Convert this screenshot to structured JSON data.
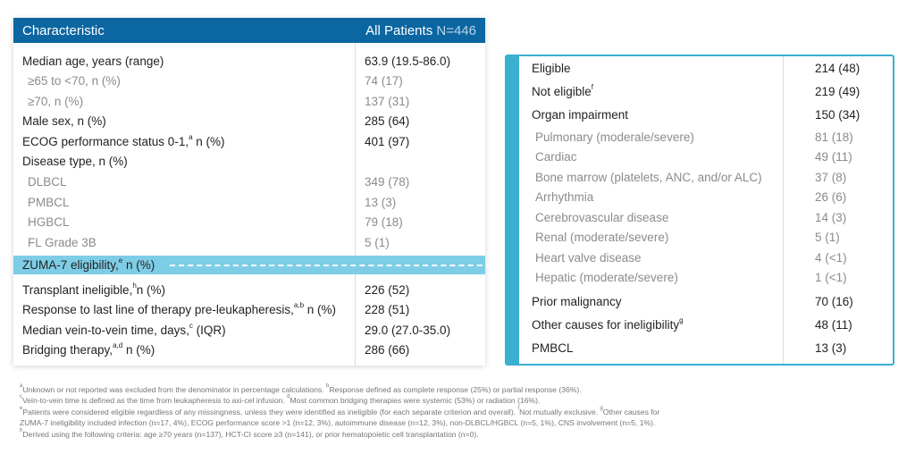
{
  "left_table": {
    "header": {
      "characteristic": "Characteristic",
      "all_patients": "All Patients",
      "n": "N=446"
    },
    "rows": [
      {
        "label": "Median age, years (range)",
        "sup": "",
        "after": "",
        "value": "63.9 (19.5-86.0)",
        "sub": false
      },
      {
        "label": "≥65 to <70, n (%)",
        "sup": "",
        "after": "",
        "value": "74 (17)",
        "sub": true
      },
      {
        "label": "≥70, n (%)",
        "sup": "",
        "after": "",
        "value": "137 (31)",
        "sub": true
      },
      {
        "label": "Male sex, n (%)",
        "sup": "",
        "after": "",
        "value": "285 (64)",
        "sub": false
      },
      {
        "label": "ECOG performance status 0-1,",
        "sup": "a",
        "after": " n (%)",
        "value": "401 (97)",
        "sub": false
      },
      {
        "label": "Disease type, n (%)",
        "sup": "",
        "after": "",
        "value": "",
        "sub": false
      },
      {
        "label": "DLBCL",
        "sup": "",
        "after": "",
        "value": "349 (78)",
        "sub": true
      },
      {
        "label": "PMBCL",
        "sup": "",
        "after": "",
        "value": "13 (3)",
        "sub": true
      },
      {
        "label": "HGBCL",
        "sup": "",
        "after": "",
        "value": "79 (18)",
        "sub": true
      },
      {
        "label": "FL Grade 3B",
        "sup": "",
        "after": "",
        "value": "5 (1)",
        "sub": true
      },
      {
        "label": "Transplant ineligible,",
        "sup": "h",
        "after": "n (%)",
        "value": "226 (52)",
        "sub": false
      },
      {
        "label": "Response to last line of therapy pre-leukapheresis,",
        "sup": "a,b",
        "after": " n (%)",
        "value": "228 (51)",
        "sub": false
      },
      {
        "label": "Median vein-to-vein time, days,",
        "sup": "c",
        "after": " (IQR)",
        "value": "29.0 (27.0-35.0)",
        "sub": false
      },
      {
        "label": "Bridging therapy,",
        "sup": "a,d",
        "after": " n (%)",
        "value": "286 (66)",
        "sub": false
      }
    ],
    "highlight": {
      "label": "ZUMA-7 eligibility,",
      "sup": "e",
      "after": " n (%)"
    }
  },
  "right_table": {
    "rows": [
      {
        "label": "Eligible",
        "sup": "",
        "value": "214 (48)",
        "sub": false
      },
      {
        "label": "Not eligible",
        "sup": "f",
        "value": "219 (49)",
        "sub": false
      },
      {
        "label": "Organ impairment",
        "sup": "",
        "value": "150 (34)",
        "sub": false
      },
      {
        "label": "Pulmonary (moderale/severe)",
        "sup": "",
        "value": "81 (18)",
        "sub": true
      },
      {
        "label": "Cardiac",
        "sup": "",
        "value": "49 (11)",
        "sub": true
      },
      {
        "label": "Bone marrow (platelets, ANC, and/or ALC)",
        "sup": "",
        "value": "37 (8)",
        "sub": true
      },
      {
        "label": "Arrhythmia",
        "sup": "",
        "value": "26 (6)",
        "sub": true
      },
      {
        "label": "Cerebrovascular disease",
        "sup": "",
        "value": "14 (3)",
        "sub": true
      },
      {
        "label": "Renal (moderate/severe)",
        "sup": "",
        "value": "5 (1)",
        "sub": true
      },
      {
        "label": "Heart valve disease",
        "sup": "",
        "value": "4 (<1)",
        "sub": true
      },
      {
        "label": "Hepatic (moderate/severe)",
        "sup": "",
        "value": "1 (<1)",
        "sub": true
      },
      {
        "label": "Prior malignancy",
        "sup": "",
        "value": "70 (16)",
        "sub": false
      },
      {
        "label": "Other causes for ineligibility",
        "sup": "g",
        "value": "48 (11)",
        "sub": false
      },
      {
        "label": "PMBCL",
        "sup": "",
        "value": "13 (3)",
        "sub": false
      }
    ]
  },
  "footnotes": [
    [
      [
        "a",
        "Unknown or not reported was excluded from the denominator in percentage calculations. "
      ],
      [
        "b",
        "Response defined as complete response (25%) or partial response (36%)."
      ]
    ],
    [
      [
        "c",
        "Vein-to-vein time is defined as the time from leukapheresis to axi-cel infusion. "
      ],
      [
        "d",
        "Most common bridging therapies were systemic (53%) or radiation (16%)."
      ]
    ],
    [
      [
        "e",
        "Patients were considered eligible regardless of any missingness, unless they were identified as ineligible (for each separate criterion and overall). "
      ],
      [
        "f",
        "Not mutually exclusive. "
      ],
      [
        "g",
        "Other causes for"
      ]
    ],
    [
      [
        "",
        "ZUMA-7 ineligibility included infection (n=17, 4%), ECOG performance score >1 (n=12, 3%), autoimmune disease (n=12, 3%), non-DLBCL/HGBCL (n=5, 1%), CNS involvement (n=5, 1%)."
      ]
    ],
    [
      [
        "h",
        "Derived using the following criteria: age ≥70 years (n=137), HCT-CI score ≥3 (n=141), or prior hematopoietic cell transplantation (n=0)."
      ]
    ]
  ]
}
